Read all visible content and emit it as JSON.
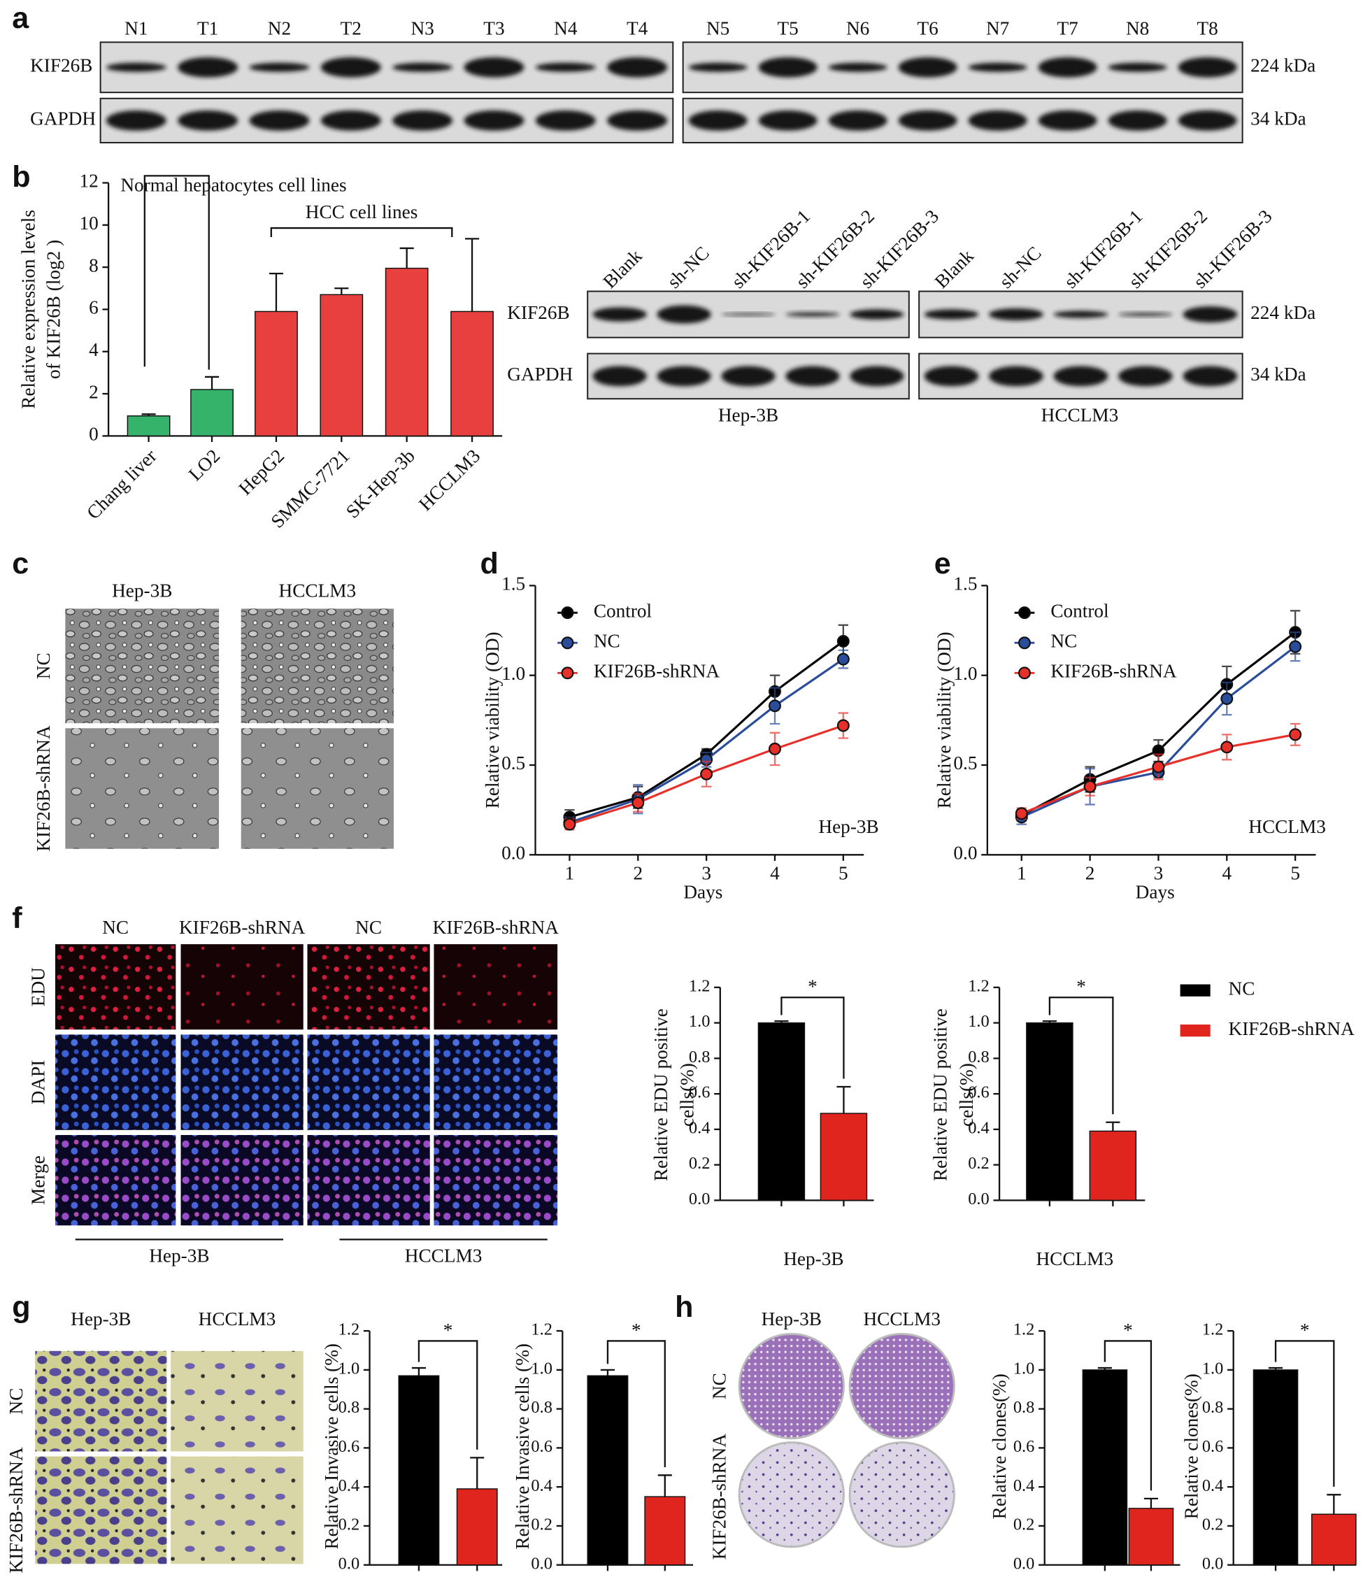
{
  "panel_labels": [
    "a",
    "b",
    "c",
    "d",
    "e",
    "f",
    "g",
    "h"
  ],
  "blot_a": {
    "lanes": [
      "N1",
      "T1",
      "N2",
      "T2",
      "N3",
      "T3",
      "N4",
      "T4",
      "N5",
      "T5",
      "N6",
      "T6",
      "N7",
      "T7",
      "N8",
      "T8"
    ],
    "rows": [
      "KIF26B",
      "GAPDH"
    ],
    "sizes": [
      "224 kDa",
      "34 kDa"
    ]
  },
  "blot_b": {
    "lanes": [
      "Blank",
      "sh-NC",
      "sh-KIF26B-1",
      "sh-KIF26B-2",
      "sh-KIF26B-3"
    ],
    "rows": [
      "KIF26B",
      "GAPDH"
    ],
    "sizes": [
      "224 kDa",
      "34 kDa"
    ],
    "groups": [
      "Hep-3B",
      "HCCLM3"
    ]
  },
  "panel_c": {
    "columns": [
      "Hep-3B",
      "HCCLM3"
    ],
    "rows": [
      "NC",
      "KIF26B-shRNA"
    ]
  },
  "panel_f": {
    "columns": [
      "NC",
      "KIF26B-shRNA",
      "NC",
      "KIF26B-shRNA"
    ],
    "rows": [
      "EDU",
      "DAPI",
      "Merge"
    ],
    "groups": [
      "Hep-3B",
      "HCCLM3"
    ]
  },
  "panel_g": {
    "columns": [
      "Hep-3B",
      "HCCLM3"
    ],
    "rows": [
      "NC",
      "KIF26B-shRNA"
    ]
  },
  "panel_h": {
    "columns": [
      "Hep-3B",
      "HCCLM3"
    ],
    "rows": [
      "NC",
      "KIF26B-shRNA"
    ]
  },
  "chart_data": [
    {
      "type": "bar",
      "ylabel": [
        "Relative expression levels",
        "of KIF26B (log2 )"
      ],
      "categories": [
        "Chang liver",
        "LO2",
        "HepG2",
        "SMMC-7721",
        "SK-Hep-3b",
        "HCCLM3"
      ],
      "values": [
        0.95,
        2.2,
        5.9,
        6.7,
        7.95,
        5.9
      ],
      "errors": [
        0.08,
        0.6,
        1.8,
        0.3,
        0.95,
        3.45
      ],
      "colors": [
        "#36b36a",
        "#36b36a",
        "#e8403f",
        "#e8403f",
        "#e8403f",
        "#e8403f"
      ],
      "ylim": [
        0,
        12
      ],
      "yticks": [
        0,
        2,
        4,
        6,
        8,
        10,
        12
      ],
      "annotations": [
        "Normal hepatocytes cell lines",
        "HCC cell lines"
      ]
    },
    {
      "type": "line",
      "xlabel": "Days",
      "ylabel": "Relative viability (OD)",
      "annotation": "Hep-3B",
      "x": [
        1,
        2,
        3,
        4,
        5
      ],
      "xlim": [
        0.5,
        5.3
      ],
      "xticks": [
        1,
        2,
        3,
        4,
        5
      ],
      "ylim": [
        0,
        1.5
      ],
      "yticks": [
        {
          "value": 0,
          "label": "0.0"
        },
        0.5,
        {
          "value": 1,
          "label": "1.0"
        },
        1.5
      ],
      "series": [
        {
          "name": "Control",
          "color": "#000000",
          "values": [
            0.21,
            0.32,
            0.56,
            0.91,
            1.19
          ],
          "errors": [
            0.04,
            0.06,
            0.03,
            0.09,
            0.09
          ]
        },
        {
          "name": "NC",
          "color": "#2a4d9b",
          "values": [
            0.18,
            0.31,
            0.53,
            0.83,
            1.09
          ],
          "errors": [
            0.03,
            0.08,
            0.04,
            0.1,
            0.05
          ]
        },
        {
          "name": "KIF26B-shRNA",
          "color": "#e8302a",
          "values": [
            0.17,
            0.29,
            0.45,
            0.59,
            0.72
          ],
          "errors": [
            0.03,
            0.05,
            0.07,
            0.09,
            0.07
          ]
        }
      ]
    },
    {
      "type": "line",
      "xlabel": "Days",
      "ylabel": "Relative viability (OD)",
      "annotation": "HCCLM3",
      "x": [
        1,
        2,
        3,
        4,
        5
      ],
      "xlim": [
        0.5,
        5.3
      ],
      "xticks": [
        1,
        2,
        3,
        4,
        5
      ],
      "ylim": [
        0,
        1.5
      ],
      "yticks": [
        {
          "value": 0,
          "label": "0.0"
        },
        0.5,
        {
          "value": 1,
          "label": "1.0"
        },
        1.5
      ],
      "series": [
        {
          "name": "Control",
          "color": "#000000",
          "values": [
            0.22,
            0.42,
            0.58,
            0.95,
            1.24
          ],
          "errors": [
            0.03,
            0.07,
            0.06,
            0.1,
            0.12
          ]
        },
        {
          "name": "NC",
          "color": "#2a4d9b",
          "values": [
            0.21,
            0.38,
            0.46,
            0.87,
            1.16
          ],
          "errors": [
            0.04,
            0.1,
            0.03,
            0.09,
            0.08
          ]
        },
        {
          "name": "KIF26B-shRNA",
          "color": "#e8302a",
          "values": [
            0.23,
            0.38,
            0.49,
            0.6,
            0.67
          ],
          "errors": [
            0.03,
            0.05,
            0.07,
            0.07,
            0.06
          ]
        }
      ]
    },
    {
      "type": "bar",
      "ylabel": [
        "Relative EDU positive",
        "cells(%)"
      ],
      "xlabel": "Hep-3B",
      "values": [
        1.0,
        0.49
      ],
      "errors": [
        0.01,
        0.15
      ],
      "colors": [
        "#000000",
        "#e0251f"
      ],
      "ylim": [
        0,
        1.2
      ],
      "yticks": [
        {
          "value": 0,
          "label": "0.0"
        },
        0.2,
        0.4,
        0.6,
        0.8,
        {
          "value": 1,
          "label": "1.0"
        },
        1.2
      ],
      "annotation": "*",
      "legend": [
        {
          "name": "NC",
          "color": "#000000"
        },
        {
          "name": "KIF26B-shRNA",
          "color": "#e0251f"
        }
      ]
    },
    {
      "type": "bar",
      "ylabel": [
        "Relative EDU positive",
        "cells(%)"
      ],
      "xlabel": "HCCLM3",
      "values": [
        1.0,
        0.39
      ],
      "errors": [
        0.01,
        0.05
      ],
      "colors": [
        "#000000",
        "#e0251f"
      ],
      "ylim": [
        0,
        1.2
      ],
      "yticks": [
        {
          "value": 0,
          "label": "0.0"
        },
        0.2,
        0.4,
        0.6,
        0.8,
        {
          "value": 1,
          "label": "1.0"
        },
        1.2
      ],
      "annotation": "*"
    },
    {
      "type": "bar",
      "ylabel": "Relative Invasive cells (%)",
      "values": [
        0.97,
        0.39
      ],
      "errors": [
        0.04,
        0.16
      ],
      "colors": [
        "#000000",
        "#e0251f"
      ],
      "ylim": [
        0,
        1.2
      ],
      "yticks": [
        {
          "value": 0,
          "label": "0.0"
        },
        0.2,
        0.4,
        0.6,
        0.8,
        {
          "value": 1,
          "label": "1.0"
        },
        1.2
      ],
      "annotation": "*"
    },
    {
      "type": "bar",
      "ylabel": "Relative Invasive cells (%)",
      "values": [
        0.97,
        0.35
      ],
      "errors": [
        0.03,
        0.11
      ],
      "colors": [
        "#000000",
        "#e0251f"
      ],
      "ylim": [
        0,
        1.2
      ],
      "yticks": [
        {
          "value": 0,
          "label": "0.0"
        },
        0.2,
        0.4,
        0.6,
        0.8,
        {
          "value": 1,
          "label": "1.0"
        },
        1.2
      ],
      "annotation": "*"
    },
    {
      "type": "bar",
      "ylabel": "Relative clones(%)",
      "values": [
        1.0,
        0.29
      ],
      "errors": [
        0.01,
        0.05
      ],
      "colors": [
        "#000000",
        "#e0251f"
      ],
      "ylim": [
        0,
        1.2
      ],
      "yticks": [
        {
          "value": 0,
          "label": "0.0"
        },
        0.2,
        0.4,
        0.6,
        0.8,
        {
          "value": 1,
          "label": "1.0"
        },
        1.2
      ],
      "annotation": "*"
    },
    {
      "type": "bar",
      "ylabel": "Relative clones(%)",
      "values": [
        1.0,
        0.26
      ],
      "errors": [
        0.01,
        0.1
      ],
      "colors": [
        "#000000",
        "#e0251f"
      ],
      "ylim": [
        0,
        1.2
      ],
      "yticks": [
        {
          "value": 0,
          "label": "0.0"
        },
        0.2,
        0.4,
        0.6,
        0.8,
        {
          "value": 1,
          "label": "1.0"
        },
        1.2
      ],
      "annotation": "*"
    }
  ]
}
